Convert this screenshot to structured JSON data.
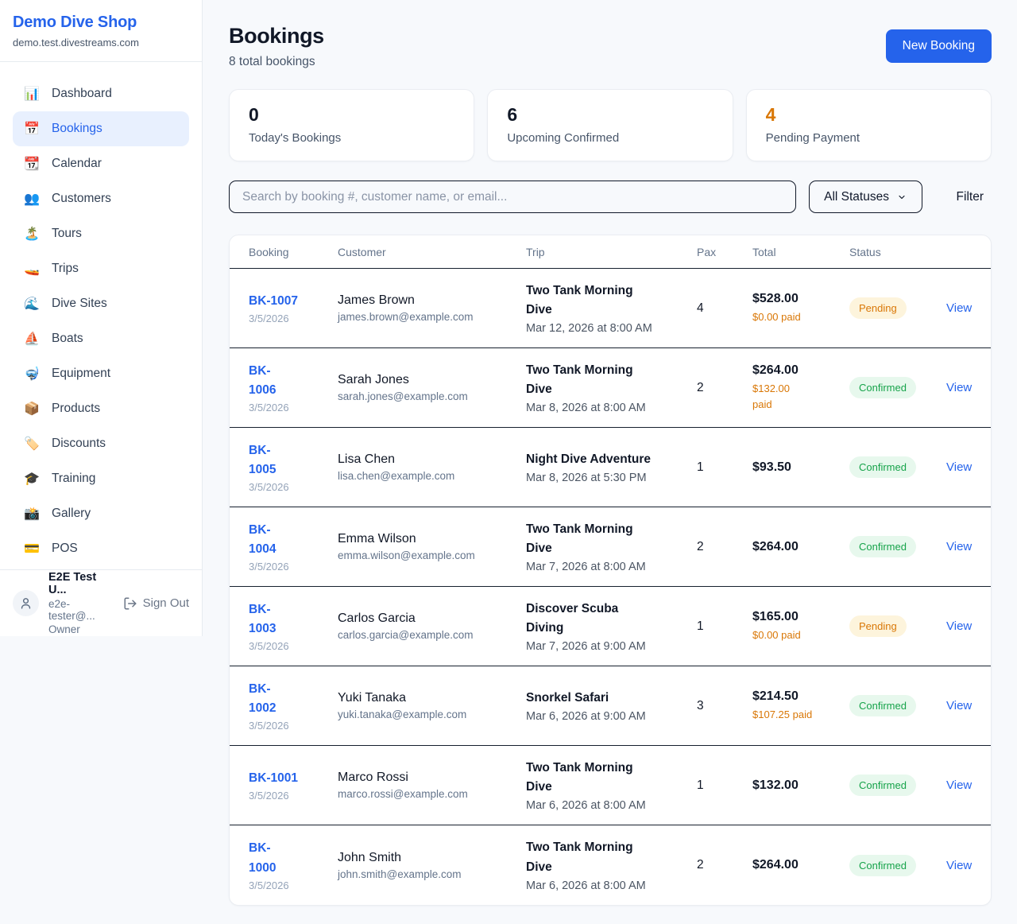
{
  "colors": {
    "brand_blue": "#2563eb",
    "accent_orange": "#d97706",
    "page_bg": "#f7f9fc",
    "active_nav_bg": "#e8f0fe",
    "status_badge": {
      "Pending": {
        "bg": "#fdf4dc",
        "text": "#d97706"
      },
      "Confirmed": {
        "bg": "#e7f8ed",
        "text": "#16a34a"
      }
    }
  },
  "sidebar": {
    "brand": {
      "name": "Demo Dive Shop",
      "domain": "demo.test.divestreams.com"
    },
    "nav": [
      {
        "label": "Dashboard",
        "icon": "📊",
        "active": false
      },
      {
        "label": "Bookings",
        "icon": "📅",
        "active": true
      },
      {
        "label": "Calendar",
        "icon": "📆",
        "active": false
      },
      {
        "label": "Customers",
        "icon": "👥",
        "active": false
      },
      {
        "label": "Tours",
        "icon": "🏝️",
        "active": false
      },
      {
        "label": "Trips",
        "icon": "🚤",
        "active": false
      },
      {
        "label": "Dive Sites",
        "icon": "🌊",
        "active": false
      },
      {
        "label": "Boats",
        "icon": "⛵",
        "active": false
      },
      {
        "label": "Equipment",
        "icon": "🤿",
        "active": false
      },
      {
        "label": "Products",
        "icon": "📦",
        "active": false
      },
      {
        "label": "Discounts",
        "icon": "🏷️",
        "active": false
      },
      {
        "label": "Training",
        "icon": "🎓",
        "active": false
      },
      {
        "label": "Gallery",
        "icon": "📸",
        "active": false
      },
      {
        "label": "POS",
        "icon": "💳",
        "active": false
      }
    ],
    "user": {
      "name": "E2E Test U...",
      "email": "e2e-tester@...",
      "role": "Owner",
      "sign_out_label": "Sign Out"
    }
  },
  "header": {
    "title": "Bookings",
    "subtitle": "8 total bookings",
    "new_booking_label": "New Booking"
  },
  "stats": [
    {
      "value": "0",
      "label": "Today's Bookings",
      "color": "#111827"
    },
    {
      "value": "6",
      "label": "Upcoming Confirmed",
      "color": "#111827"
    },
    {
      "value": "4",
      "label": "Pending Payment",
      "color": "#d97706"
    }
  ],
  "filters": {
    "search_placeholder": "Search by booking #, customer name, or email...",
    "status_selected": "All Statuses",
    "filter_label": "Filter"
  },
  "table": {
    "columns": [
      "Booking",
      "Customer",
      "Trip",
      "Pax",
      "Total",
      "Status"
    ],
    "view_label": "View",
    "rows": [
      {
        "id": "BK-1007",
        "booked_date": "3/5/2026",
        "customer": "James Brown",
        "email": "james.brown@example.com",
        "trip": "Two Tank Morning\nDive",
        "trip_date": "Mar 12, 2026 at 8:00 AM",
        "pax": "4",
        "total": "$528.00",
        "paid": "$0.00 paid",
        "status": "Pending"
      },
      {
        "id": "BK-\n1006",
        "booked_date": "3/5/2026",
        "customer": "Sarah Jones",
        "email": "sarah.jones@example.com",
        "trip": "Two Tank Morning\nDive",
        "trip_date": "Mar 8, 2026 at 8:00 AM",
        "pax": "2",
        "total": "$264.00",
        "paid": "$132.00\npaid",
        "status": "Confirmed"
      },
      {
        "id": "BK-\n1005",
        "booked_date": "3/5/2026",
        "customer": "Lisa Chen",
        "email": "lisa.chen@example.com",
        "trip": "Night Dive Adventure",
        "trip_date": "Mar 8, 2026 at 5:30 PM",
        "pax": "1",
        "total": "$93.50",
        "paid": "",
        "status": "Confirmed"
      },
      {
        "id": "BK-\n1004",
        "booked_date": "3/5/2026",
        "customer": "Emma Wilson",
        "email": "emma.wilson@example.com",
        "trip": "Two Tank Morning\nDive",
        "trip_date": "Mar 7, 2026 at 8:00 AM",
        "pax": "2",
        "total": "$264.00",
        "paid": "",
        "status": "Confirmed"
      },
      {
        "id": "BK-\n1003",
        "booked_date": "3/5/2026",
        "customer": "Carlos Garcia",
        "email": "carlos.garcia@example.com",
        "trip": "Discover Scuba\nDiving",
        "trip_date": "Mar 7, 2026 at 9:00 AM",
        "pax": "1",
        "total": "$165.00",
        "paid": "$0.00 paid",
        "status": "Pending"
      },
      {
        "id": "BK-\n1002",
        "booked_date": "3/5/2026",
        "customer": "Yuki Tanaka",
        "email": "yuki.tanaka@example.com",
        "trip": "Snorkel Safari",
        "trip_date": "Mar 6, 2026 at 9:00 AM",
        "pax": "3",
        "total": "$214.50",
        "paid": "$107.25 paid",
        "status": "Confirmed"
      },
      {
        "id": "BK-1001",
        "booked_date": "3/5/2026",
        "customer": "Marco Rossi",
        "email": "marco.rossi@example.com",
        "trip": "Two Tank Morning\nDive",
        "trip_date": "Mar 6, 2026 at 8:00 AM",
        "pax": "1",
        "total": "$132.00",
        "paid": "",
        "status": "Confirmed"
      },
      {
        "id": "BK-\n1000",
        "booked_date": "3/5/2026",
        "customer": "John Smith",
        "email": "john.smith@example.com",
        "trip": "Two Tank Morning\nDive",
        "trip_date": "Mar 6, 2026 at 8:00 AM",
        "pax": "2",
        "total": "$264.00",
        "paid": "",
        "status": "Confirmed"
      }
    ]
  }
}
